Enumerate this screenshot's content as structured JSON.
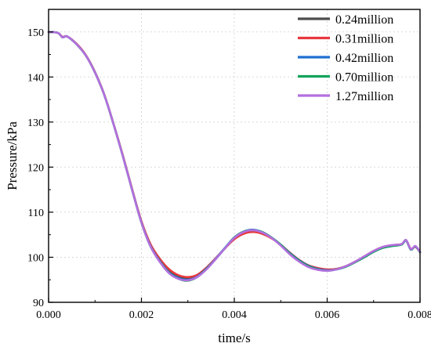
{
  "chart_data": {
    "type": "line",
    "xlabel": "time/s",
    "ylabel": "Pressure/kPa",
    "xlim": [
      0.0,
      0.008
    ],
    "ylim": [
      90,
      155
    ],
    "xticks": [
      0.0,
      0.002,
      0.004,
      0.006,
      0.008
    ],
    "xtick_labels": [
      "0.000",
      "0.002",
      "0.004",
      "0.006",
      "0.008"
    ],
    "yticks": [
      90,
      100,
      110,
      120,
      130,
      140,
      150
    ],
    "ytick_labels": [
      "90",
      "100",
      "110",
      "120",
      "130",
      "140",
      "150"
    ],
    "grid": true,
    "legend_position": "top-right",
    "series": [
      {
        "name": "0.24million",
        "color": "#4d4d4d",
        "x": [
          0,
          0.0002,
          0.0003,
          0.0004,
          0.0006,
          0.0008,
          0.001,
          0.0012,
          0.0014,
          0.0016,
          0.0018,
          0.002,
          0.0022,
          0.0024,
          0.0026,
          0.0028,
          0.003,
          0.0032,
          0.0034,
          0.0036,
          0.0038,
          0.004,
          0.0042,
          0.0044,
          0.0046,
          0.0048,
          0.005,
          0.0052,
          0.0054,
          0.0056,
          0.0058,
          0.006,
          0.0062,
          0.0064,
          0.0066,
          0.0068,
          0.007,
          0.0072,
          0.0074,
          0.0076,
          0.0077,
          0.0078,
          0.0079,
          0.008
        ],
        "values": [
          150,
          149.8,
          148.8,
          149.0,
          147.3,
          144.8,
          141.0,
          136.0,
          129.5,
          122.5,
          115.0,
          107.8,
          102.5,
          99.2,
          96.8,
          95.6,
          95.3,
          95.9,
          97.6,
          99.7,
          102.0,
          104.2,
          105.5,
          105.9,
          105.4,
          104.3,
          102.7,
          100.8,
          99.2,
          98.0,
          97.4,
          97.2,
          97.4,
          98.0,
          99.0,
          100.1,
          101.3,
          102.2,
          102.6,
          102.9,
          103.8,
          101.8,
          102.4,
          101.2
        ]
      },
      {
        "name": "0.31million",
        "color": "#e8393d",
        "x": [
          0,
          0.0002,
          0.0003,
          0.0004,
          0.0006,
          0.0008,
          0.001,
          0.0012,
          0.0014,
          0.0016,
          0.0018,
          0.002,
          0.0022,
          0.0024,
          0.0026,
          0.0028,
          0.003,
          0.0032,
          0.0034,
          0.0036,
          0.0038,
          0.004,
          0.0042,
          0.0044,
          0.0046,
          0.0048,
          0.005,
          0.0052,
          0.0054,
          0.0056,
          0.0058,
          0.006,
          0.0062,
          0.0064,
          0.0066,
          0.0068,
          0.007,
          0.0072,
          0.0074,
          0.0076,
          0.0077,
          0.0078,
          0.0079,
          0.008
        ],
        "values": [
          150,
          149.8,
          148.9,
          149.0,
          147.4,
          144.9,
          141.1,
          136.1,
          129.6,
          122.6,
          115.1,
          108.0,
          102.8,
          99.6,
          97.3,
          96.0,
          95.6,
          96.1,
          97.7,
          99.8,
          102.0,
          104.0,
          105.2,
          105.6,
          105.2,
          104.2,
          102.8,
          101.0,
          99.4,
          98.2,
          97.6,
          97.3,
          97.4,
          98.0,
          99.0,
          100.2,
          101.4,
          102.3,
          102.7,
          102.9,
          103.7,
          101.9,
          102.3,
          101.2
        ]
      },
      {
        "name": "0.42million",
        "color": "#1f6fd1",
        "x": [
          0,
          0.0002,
          0.0003,
          0.0004,
          0.0006,
          0.0008,
          0.001,
          0.0012,
          0.0014,
          0.0016,
          0.0018,
          0.002,
          0.0022,
          0.0024,
          0.0026,
          0.0028,
          0.003,
          0.0032,
          0.0034,
          0.0036,
          0.0038,
          0.004,
          0.0042,
          0.0044,
          0.0046,
          0.0048,
          0.005,
          0.0052,
          0.0054,
          0.0056,
          0.0058,
          0.006,
          0.0062,
          0.0064,
          0.0066,
          0.0068,
          0.007,
          0.0072,
          0.0074,
          0.0076,
          0.0077,
          0.0078,
          0.0079,
          0.008
        ],
        "values": [
          150,
          149.8,
          148.8,
          149.0,
          147.3,
          144.8,
          141.0,
          136.0,
          129.5,
          122.4,
          114.9,
          107.7,
          102.4,
          99.1,
          96.6,
          95.4,
          95.0,
          95.7,
          97.5,
          99.7,
          102.1,
          104.4,
          105.7,
          106.1,
          105.6,
          104.4,
          102.8,
          100.9,
          99.3,
          98.1,
          97.4,
          97.1,
          97.3,
          97.9,
          98.9,
          100.0,
          101.2,
          102.1,
          102.5,
          102.8,
          103.7,
          101.7,
          102.4,
          101.1
        ]
      },
      {
        "name": "0.70million",
        "color": "#12a35a",
        "x": [
          0,
          0.0002,
          0.0003,
          0.0004,
          0.0006,
          0.0008,
          0.001,
          0.0012,
          0.0014,
          0.0016,
          0.0018,
          0.002,
          0.0022,
          0.0024,
          0.0026,
          0.0028,
          0.003,
          0.0032,
          0.0034,
          0.0036,
          0.0038,
          0.004,
          0.0042,
          0.0044,
          0.0046,
          0.0048,
          0.005,
          0.0052,
          0.0054,
          0.0056,
          0.0058,
          0.006,
          0.0062,
          0.0064,
          0.0066,
          0.0068,
          0.007,
          0.0072,
          0.0074,
          0.0076,
          0.0077,
          0.0078,
          0.0079,
          0.008
        ],
        "values": [
          150,
          149.8,
          148.8,
          149.0,
          147.3,
          144.8,
          141.0,
          136.0,
          129.5,
          122.4,
          114.9,
          107.7,
          102.3,
          99.0,
          96.5,
          95.2,
          94.8,
          95.6,
          97.4,
          99.6,
          102.0,
          104.4,
          105.7,
          106.0,
          105.6,
          104.4,
          102.8,
          100.8,
          99.2,
          98.0,
          97.3,
          97.0,
          97.3,
          97.9,
          98.9,
          100.0,
          101.2,
          102.1,
          102.5,
          102.8,
          103.7,
          101.7,
          102.4,
          101.1
        ]
      },
      {
        "name": "1.27million",
        "color": "#b36fe0",
        "x": [
          0,
          0.0002,
          0.0003,
          0.0004,
          0.0006,
          0.0008,
          0.001,
          0.0012,
          0.0014,
          0.0016,
          0.0018,
          0.002,
          0.0022,
          0.0024,
          0.0026,
          0.0028,
          0.003,
          0.0032,
          0.0034,
          0.0036,
          0.0038,
          0.004,
          0.0042,
          0.0044,
          0.0046,
          0.0048,
          0.005,
          0.0052,
          0.0054,
          0.0056,
          0.0058,
          0.006,
          0.0062,
          0.0064,
          0.0066,
          0.0068,
          0.007,
          0.0072,
          0.0074,
          0.0076,
          0.0077,
          0.0078,
          0.0079,
          0.008
        ],
        "values": [
          150,
          149.8,
          148.8,
          149.0,
          147.3,
          144.8,
          141.0,
          136.0,
          129.5,
          122.4,
          114.9,
          107.7,
          102.3,
          98.9,
          96.4,
          95.2,
          94.9,
          95.6,
          97.3,
          99.6,
          102.0,
          104.3,
          105.6,
          106.0,
          105.5,
          104.3,
          102.6,
          100.6,
          99.0,
          97.8,
          97.2,
          97.0,
          97.3,
          98.0,
          99.0,
          100.2,
          101.4,
          102.3,
          102.7,
          102.9,
          103.8,
          101.8,
          102.5,
          101.2
        ]
      }
    ]
  }
}
